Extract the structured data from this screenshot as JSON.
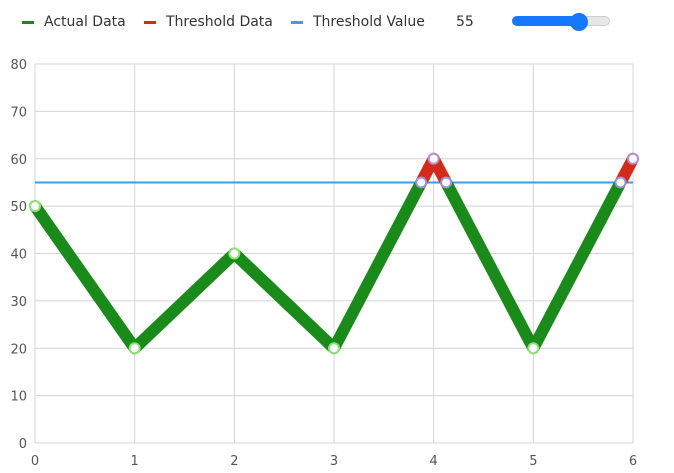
{
  "legend": {
    "items": [
      {
        "label": "Actual Data",
        "color": "#1a8a1a"
      },
      {
        "label": "Threshold Data",
        "color": "#d42a1a"
      },
      {
        "label": "Threshold Value",
        "color": "#3a9ee8"
      }
    ]
  },
  "threshold": {
    "value_text": "55",
    "value": 55,
    "slider_min": 0,
    "slider_max": 80,
    "slider_color": "#1677ff"
  },
  "chart_data": {
    "type": "line",
    "title": "",
    "xlabel": "",
    "ylabel": "",
    "x": [
      0,
      1,
      2,
      3,
      4,
      5,
      6
    ],
    "xlim": [
      0,
      6
    ],
    "ylim": [
      0,
      80
    ],
    "yticks": [
      0,
      10,
      20,
      30,
      40,
      50,
      60,
      70,
      80
    ],
    "grid": true,
    "legend_position": "top-left",
    "series": [
      {
        "name": "Actual Data",
        "values": [
          50,
          20,
          40,
          20,
          60,
          20,
          60
        ],
        "color": "#1a8a1a"
      },
      {
        "name": "Threshold Data",
        "color": "#d42a1a",
        "rule": "portion above threshold value"
      },
      {
        "name": "Threshold Value",
        "values": [
          55,
          55,
          55,
          55,
          55,
          55,
          55
        ],
        "color": "#3a9ee8"
      }
    ]
  }
}
